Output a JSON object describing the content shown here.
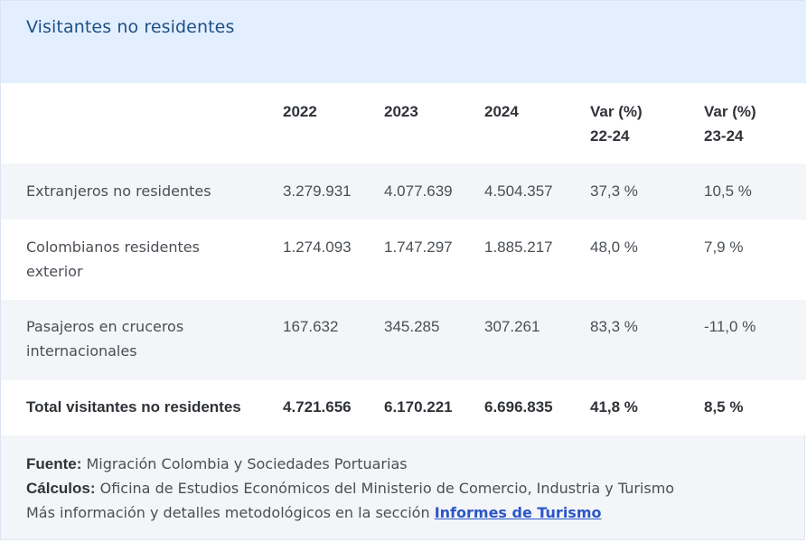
{
  "title": "Visitantes no residentes",
  "table": {
    "headers": [
      {
        "line1": "",
        "line2": ""
      },
      {
        "line1": "2022",
        "line2": ""
      },
      {
        "line1": "2023",
        "line2": ""
      },
      {
        "line1": "2024",
        "line2": ""
      },
      {
        "line1": "Var (%)",
        "line2": "22-24"
      },
      {
        "line1": "Var (%)",
        "line2": "23-24"
      }
    ],
    "rows": [
      {
        "label_line1": "Extranjeros no residentes",
        "label_line2": "",
        "values": [
          "3.279.931",
          "4.077.639",
          "4.504.357",
          "37,3 %",
          "10,5 %"
        ]
      },
      {
        "label_line1": "Colombianos residentes",
        "label_line2": "exterior",
        "values": [
          "1.274.093",
          "1.747.297",
          "1.885.217",
          "48,0 %",
          "7,9 %"
        ]
      },
      {
        "label_line1": "Pasajeros en cruceros",
        "label_line2": "internacionales",
        "values": [
          "167.632",
          "345.285",
          "307.261",
          "83,3 %",
          "-11,0 %"
        ]
      }
    ],
    "total": {
      "label": "Total visitantes no residentes",
      "values": [
        "4.721.656",
        "6.170.221",
        "6.696.835",
        "41,8 %",
        "8,5 %"
      ]
    }
  },
  "notes": {
    "source_label": "Fuente:",
    "source_text": " Migración Colombia y Sociedades Portuarias",
    "calc_label": "Cálculos:",
    "calc_text": " Oficina de Estudios Económicos del Ministerio de Comercio, Industria y Turismo",
    "more_text": "Más información y detalles metodológicos en la sección ",
    "link_text": "Informes de Turismo"
  },
  "colors": {
    "header_bg": "#e3efff",
    "title": "#1d4f86",
    "stripe_bg": "#f4f5f8",
    "link": "#2a57c7"
  }
}
